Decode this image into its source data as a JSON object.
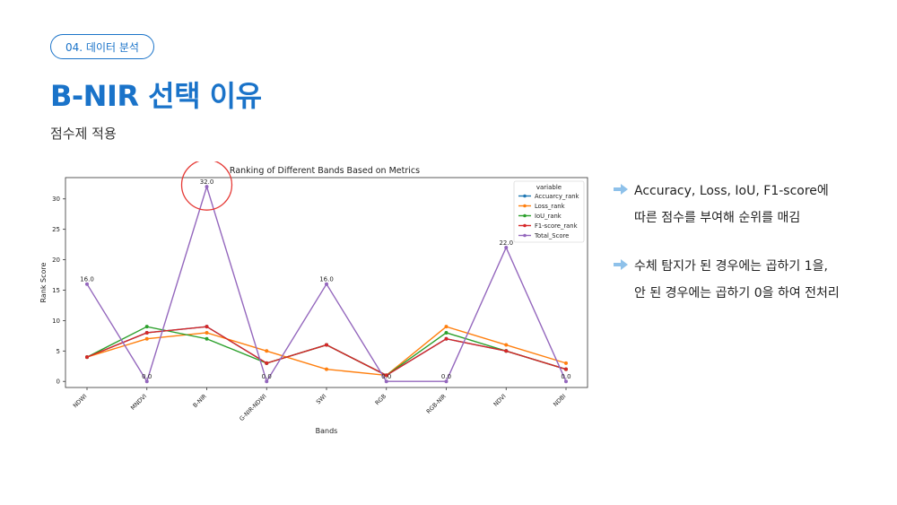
{
  "header": {
    "section_label": "04. 데이터 분석",
    "title": "B-NIR 선택 이유",
    "subtitle": "점수제 적용"
  },
  "colors": {
    "accent": "#1a73c9",
    "highlight_circle": "#e53935",
    "arrow": "#8ec1ea"
  },
  "chart_data": {
    "type": "line",
    "title": "Ranking of Different Bands Based on Metrics",
    "xlabel": "Bands",
    "ylabel": "Rank Score",
    "ylim": [
      -1,
      33.5
    ],
    "yticks": [
      0,
      5,
      10,
      15,
      20,
      25,
      30
    ],
    "categories": [
      "NDWI",
      "MNDVI",
      "B-NIR",
      "G-NIR-NDWI",
      "SWI",
      "RGB",
      "RGB-NIR",
      "NDVI",
      "NDBI"
    ],
    "legend_title": "variable",
    "legend_position": "top-right",
    "series": [
      {
        "name": "Accuarcy_rank",
        "color": "#1f77b4",
        "values": [
          4,
          8,
          9,
          3,
          6,
          1,
          7,
          5,
          2
        ]
      },
      {
        "name": "Loss_rank",
        "color": "#ff7f0e",
        "values": [
          4,
          7,
          8,
          5,
          2,
          1,
          9,
          6,
          3
        ]
      },
      {
        "name": "IoU_rank",
        "color": "#2ca02c",
        "values": [
          4,
          9,
          7,
          3,
          6,
          1,
          8,
          5,
          2
        ]
      },
      {
        "name": "F1-score_rank",
        "color": "#d62728",
        "values": [
          4,
          8,
          9,
          3,
          6,
          1,
          7,
          5,
          2
        ]
      },
      {
        "name": "Total_Score",
        "color": "#9467bd",
        "values": [
          16,
          0,
          32,
          0,
          16,
          0,
          0,
          22,
          0
        ]
      }
    ],
    "data_labels": [
      "16.0",
      "0.0",
      "32.0",
      "0.0",
      "16.0",
      "0.0",
      "0.0",
      "22.0",
      "0.0"
    ],
    "highlight_category": "B-NIR"
  },
  "notes": [
    {
      "icon": "arrow-right-icon",
      "lines": [
        "Accuracy, Loss, IoU, F1-score에",
        "따른 점수를 부여해 순위를 매김"
      ]
    },
    {
      "icon": "arrow-right-icon",
      "lines": [
        "수체 탐지가 된 경우에는 곱하기 1을,",
        "안 된 경우에는 곱하기 0을 하여 전처리"
      ]
    }
  ]
}
